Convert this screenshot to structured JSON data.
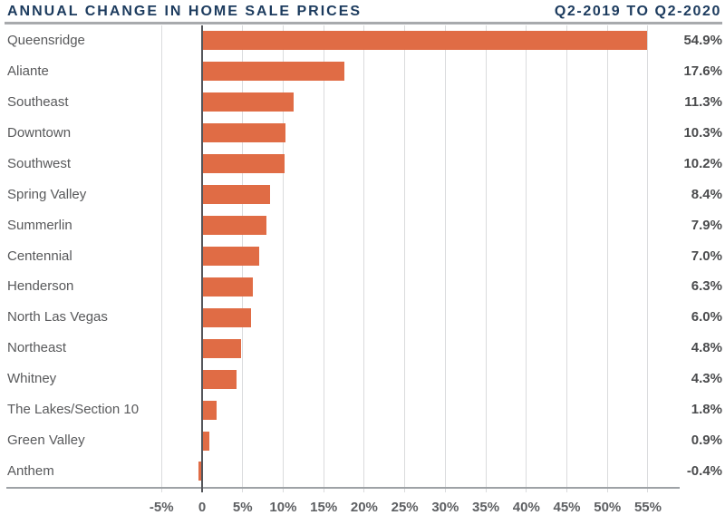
{
  "header": {
    "title": "ANNUAL CHANGE IN HOME SALE PRICES",
    "period": "Q2-2019 TO Q2-2020"
  },
  "chart_data": {
    "type": "bar",
    "orientation": "horizontal",
    "title": "Annual Change in Home Sale Prices",
    "subtitle": "Q2-2019 to Q2-2020",
    "categories": [
      "Queensridge",
      "Aliante",
      "Southeast",
      "Downtown",
      "Southwest",
      "Spring Valley",
      "Summerlin",
      "Centennial",
      "Henderson",
      "North Las Vegas",
      "Northeast",
      "Whitney",
      "The Lakes/Section 10",
      "Green Valley",
      "Anthem"
    ],
    "values": [
      54.9,
      17.6,
      11.3,
      10.3,
      10.2,
      8.4,
      7.9,
      7.0,
      6.3,
      6.0,
      4.8,
      4.3,
      1.8,
      0.9,
      -0.4
    ],
    "value_labels": [
      "54.9%",
      "17.6%",
      "11.3%",
      "10.3%",
      "10.2%",
      "8.4%",
      "7.9%",
      "7.0%",
      "6.3%",
      "6.0%",
      "4.8%",
      "4.3%",
      "1.8%",
      "0.9%",
      "-0.4%"
    ],
    "x_ticks": [
      -5,
      0,
      5,
      10,
      15,
      20,
      25,
      30,
      35,
      40,
      45,
      50,
      55
    ],
    "x_tick_labels": [
      "-5%",
      "0",
      "5%",
      "10%",
      "15%",
      "20%",
      "25%",
      "30%",
      "35%",
      "40%",
      "45%",
      "50%",
      "55%"
    ],
    "xlim": [
      -5,
      55
    ],
    "xlabel": "",
    "ylabel": "",
    "grid": true,
    "legend": "none",
    "colors": {
      "bar": "#E06C45",
      "title": "#1C3B5E",
      "gridline": "#DADBDD",
      "zero_line": "#54565B",
      "baseline": "#9EA2A6",
      "header_rule": "#A8AAAD",
      "category_label": "#58595B",
      "value_label": "#4A4B4D",
      "tick_label": "#5D5F62"
    }
  }
}
